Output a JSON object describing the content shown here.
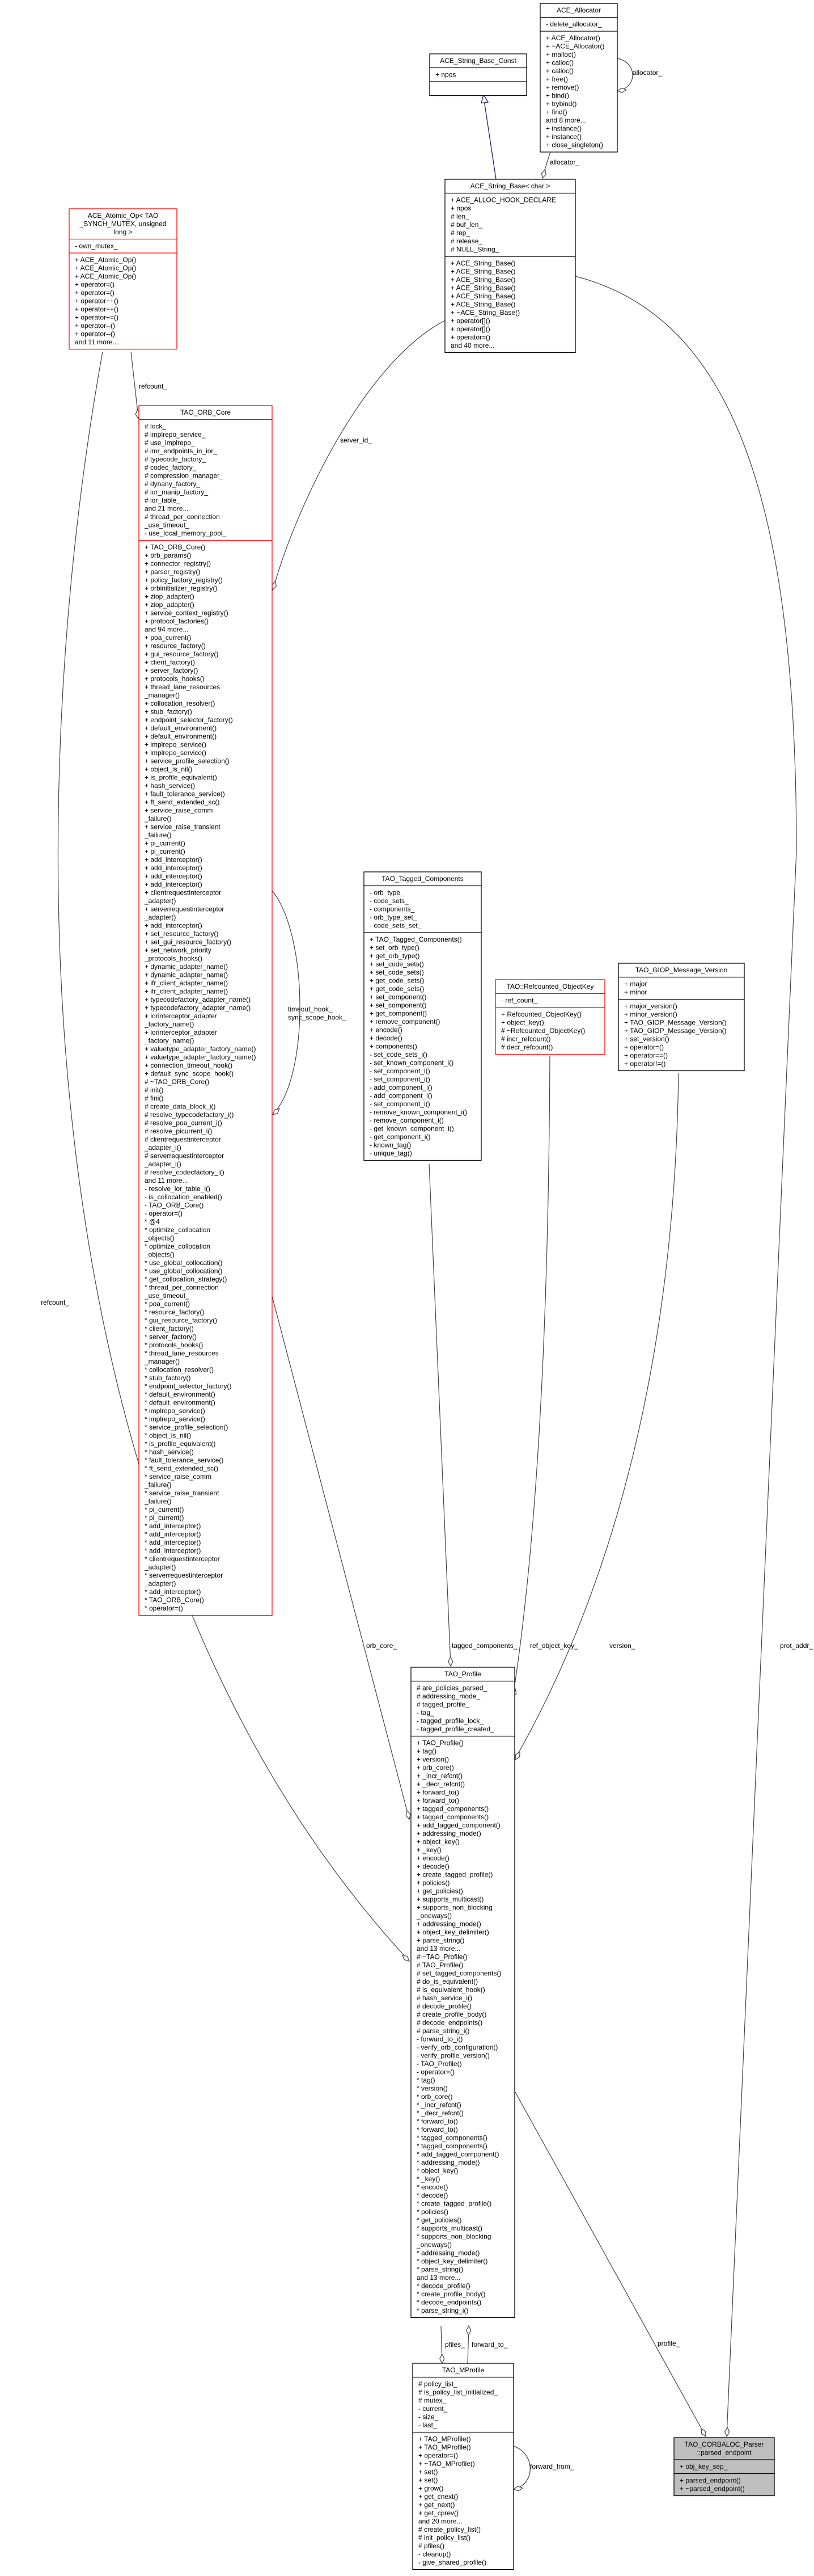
{
  "colors": {
    "normal_border": "#000000",
    "incomplete_border": "#ff0000",
    "focus_fill": "#bfbfbf",
    "box_fill": "#ffffff",
    "edge": "#404040",
    "inheritance_edge": "#191970"
  },
  "classes": [
    {
      "id": "ace-allocator",
      "title": [
        "ACE_Allocator"
      ],
      "border": "normal",
      "attributes": [
        "- delete_allocator_"
      ],
      "methods": [
        "+ ACE_Allocator()",
        "+ ~ACE_Allocator()",
        "+ malloc()",
        "+ calloc()",
        "+ calloc()",
        "+ free()",
        "+ remove()",
        "+ bind()",
        "+ trybind()",
        "+ find()",
        "and 8 more...",
        "+ instance()",
        "+ instance()",
        "+ close_singleton()"
      ]
    },
    {
      "id": "ace-string-base-const",
      "title": [
        "ACE_String_Base_Const"
      ],
      "border": "normal",
      "attributes": [
        "+ npos"
      ],
      "methods": []
    },
    {
      "id": "ace-string-base-char",
      "title": [
        "ACE_String_Base< char >"
      ],
      "border": "normal",
      "attributes": [
        "+ ACE_ALLOC_HOOK_DECLARE",
        "+ npos",
        "# len_",
        "# buf_len_",
        "# rep_",
        "# release_",
        "# NULL_String_"
      ],
      "methods": [
        "+ ACE_String_Base()",
        "+ ACE_String_Base()",
        "+ ACE_String_Base()",
        "+ ACE_String_Base()",
        "+ ACE_String_Base()",
        "+ ACE_String_Base()",
        "+ ~ACE_String_Base()",
        "+ operator[]()",
        "+ operator[]()",
        "+ operator=()",
        "and 40 more..."
      ]
    },
    {
      "id": "ace-atomic-op",
      "title": [
        "ACE_Atomic_Op< TAO",
        "_SYNCH_MUTEX, unsigned",
        "long >"
      ],
      "border": "incomplete",
      "attributes": [
        "- own_mutex_"
      ],
      "methods": [
        "+ ACE_Atomic_Op()",
        "+ ACE_Atomic_Op()",
        "+ ACE_Atomic_Op()",
        "+ operator=()",
        "+ operator=()",
        "+ operator++()",
        "+ operator++()",
        "+ operator+=()",
        "+ operator--()",
        "+ operator--()",
        "and 11 more..."
      ]
    },
    {
      "id": "tao-orb-core",
      "title": [
        "TAO_ORB_Core"
      ],
      "border": "incomplete",
      "attributes": [
        "# lock_",
        "# implrepo_service_",
        "# use_implrepo_",
        "# imr_endpoints_in_ior_",
        "# typecode_factory_",
        "# codec_factory_",
        "# compression_manager_",
        "# dynany_factory_",
        "# ior_manip_factory_",
        "# ior_table_",
        "and 21 more...",
        "# thread_per_connection",
        "_use_timeout_",
        "- use_local_memory_pool_"
      ],
      "methods": [
        "+ TAO_ORB_Core()",
        "+ orb_params()",
        "+ connector_registry()",
        "+ parser_registry()",
        "+ policy_factory_registry()",
        "+ orbinitializer_registry()",
        "+ ziop_adapter()",
        "+ ziop_adapter()",
        "+ service_context_registry()",
        "+ protocol_factories()",
        "and 94 more...",
        "+ poa_current()",
        "+ resource_factory()",
        "+ gui_resource_factory()",
        "+ client_factory()",
        "+ server_factory()",
        "+ protocols_hooks()",
        "+ thread_lane_resources",
        "_manager()",
        "+ collocation_resolver()",
        "+ stub_factory()",
        "+ endpoint_selector_factory()",
        "+ default_environment()",
        "+ default_environment()",
        "+ implrepo_service()",
        "+ implrepo_service()",
        "+ service_profile_selection()",
        "+ object_is_nil()",
        "+ is_profile_equivalent()",
        "+ hash_service()",
        "+ fault_tolerance_service()",
        "+ ft_send_extended_sc()",
        "+ service_raise_comm",
        "_failure()",
        "+ service_raise_transient",
        "_failure()",
        "+ pi_current()",
        "+ pi_current()",
        "+ add_interceptor()",
        "+ add_interceptor()",
        "+ add_interceptor()",
        "+ add_interceptor()",
        "+ clientrequestinterceptor",
        "_adapter()",
        "+ serverrequestinterceptor",
        "_adapter()",
        "+ add_interceptor()",
        "+ set_resource_factory()",
        "+ set_gui_resource_factory()",
        "+ set_network_priority",
        "_protocols_hooks()",
        "+ dynamic_adapter_name()",
        "+ dynamic_adapter_name()",
        "+ ifr_client_adapter_name()",
        "+ ifr_client_adapter_name()",
        "+ typecodefactory_adapter_name()",
        "+ typecodefactory_adapter_name()",
        "+ iorinterceptor_adapter",
        "_factory_name()",
        "+ iorinterceptor_adapter",
        "_factory_name()",
        "+ valuetype_adapter_factory_name()",
        "+ valuetype_adapter_factory_name()",
        "+ connection_timeout_hook()",
        "+ default_sync_scope_hook()",
        "# ~TAO_ORB_Core()",
        "# init()",
        "# fini()",
        "# create_data_block_i()",
        "# resolve_typecodefactory_i()",
        "# resolve_poa_current_i()",
        "# resolve_picurrent_i()",
        "# clientrequestinterceptor",
        "_adapter_i()",
        "# serverrequestinterceptor",
        "_adapter_i()",
        "# resolve_codecfactory_i()",
        "and 11 more...",
        "- resolve_ior_table_i()",
        "- is_collocation_enabled()",
        "- TAO_ORB_Core()",
        "- operator=()",
        "* @4",
        "* optimize_collocation",
        "_objects()",
        "* optimize_collocation",
        "_objects()",
        "* use_global_collocation()",
        "* use_global_collocation()",
        "* get_collocation_strategy()",
        "* thread_per_connection",
        "_use_timeout_",
        "* poa_current()",
        "* resource_factory()",
        "* gui_resource_factory()",
        "* client_factory()",
        "* server_factory()",
        "* protocols_hooks()",
        "* thread_lane_resources",
        "_manager()",
        "* collocation_resolver()",
        "* stub_factory()",
        "* endpoint_selector_factory()",
        "* default_environment()",
        "* default_environment()",
        "* implrepo_service()",
        "* implrepo_service()",
        "* service_profile_selection()",
        "* object_is_nil()",
        "* is_profile_equivalent()",
        "* hash_service()",
        "* fault_tolerance_service()",
        "* ft_send_extended_sc()",
        "* service_raise_comm",
        "_failure()",
        "* service_raise_transient",
        "_failure()",
        "* pi_current()",
        "* pi_current()",
        "* add_interceptor()",
        "* add_interceptor()",
        "* add_interceptor()",
        "* add_interceptor()",
        "* clientrequestinterceptor",
        "_adapter()",
        "* serverrequestinterceptor",
        "_adapter()",
        "* add_interceptor()",
        "* TAO_ORB_Core()",
        "* operator=()"
      ]
    },
    {
      "id": "tao-tagged-components",
      "title": [
        "TAO_Tagged_Components"
      ],
      "border": "normal",
      "attributes": [
        "- orb_type_",
        "- code_sets_",
        "- components_",
        "- orb_type_set_",
        "- code_sets_set_"
      ],
      "methods": [
        "+ TAO_Tagged_Components()",
        "+ set_orb_type()",
        "+ get_orb_type()",
        "+ set_code_sets()",
        "+ set_code_sets()",
        "+ get_code_sets()",
        "+ get_code_sets()",
        "+ set_component()",
        "+ set_component()",
        "+ get_component()",
        "+ remove_component()",
        "+ encode()",
        "+ decode()",
        "+ components()",
        "- set_code_sets_i()",
        "- set_known_component_i()",
        "- set_component_i()",
        "- set_component_i()",
        "- add_component_i()",
        "- add_component_i()",
        "- set_component_i()",
        "- remove_known_component_i()",
        "- remove_component_i()",
        "- get_known_component_i()",
        "- get_component_i()",
        "- known_tag()",
        "- unique_tag()"
      ]
    },
    {
      "id": "tao-refcounted-objectkey",
      "title": [
        "TAO::Refcounted_ObjectKey"
      ],
      "border": "incomplete",
      "attributes": [
        "- ref_count_"
      ],
      "methods": [
        "+ Refcounted_ObjectKey()",
        "+ object_key()",
        "# ~Refcounted_ObjectKey()",
        "# incr_refcount()",
        "# decr_refcount()"
      ]
    },
    {
      "id": "tao-giop-message-version",
      "title": [
        "TAO_GIOP_Message_Version"
      ],
      "border": "normal",
      "attributes": [
        "+ major",
        "+ minor"
      ],
      "methods": [
        "+ major_version()",
        "+ minor_version()",
        "+ TAO_GIOP_Message_Version()",
        "+ TAO_GIOP_Message_Version()",
        "+ set_version()",
        "+ operator=()",
        "+ operator==()",
        "+ operator!=()"
      ]
    },
    {
      "id": "tao-profile",
      "title": [
        "TAO_Profile"
      ],
      "border": "normal",
      "attributes": [
        "# are_policies_parsed_",
        "# addressing_mode_",
        "# tagged_profile_",
        "- tag_",
        "- tagged_profile_lock_",
        "- tagged_profile_created_"
      ],
      "methods": [
        "+ TAO_Profile()",
        "+ tag()",
        "+ version()",
        "+ orb_core()",
        "+ _incr_refcnt()",
        "+ _decr_refcnt()",
        "+ forward_to()",
        "+ forward_to()",
        "+ tagged_components()",
        "+ tagged_components()",
        "+ add_tagged_component()",
        "+ addressing_mode()",
        "+ object_key()",
        "+ _key()",
        "+ encode()",
        "+ decode()",
        "+ create_tagged_profile()",
        "+ policies()",
        "+ get_policies()",
        "+ supports_multicast()",
        "+ supports_non_blocking",
        "_oneways()",
        "+ addressing_mode()",
        "+ object_key_delimiter()",
        "+ parse_string()",
        "and 13 more...",
        "# ~TAO_Profile()",
        "# TAO_Profile()",
        "# set_tagged_components()",
        "# do_is_equivalent()",
        "# is_equivalent_hook()",
        "# hash_service_i()",
        "# decode_profile()",
        "# create_profile_body()",
        "# decode_endpoints()",
        "# parse_string_i()",
        "- forward_to_i()",
        "- verify_orb_configuration()",
        "- verify_profile_version()",
        "- TAO_Profile()",
        "- operator=()",
        "* tag()",
        "* version()",
        "* orb_core()",
        "* _incr_refcnt()",
        "* _decr_refcnt()",
        "* forward_to()",
        "* forward_to()",
        "* tagged_components()",
        "* tagged_components()",
        "* add_tagged_component()",
        "* addressing_mode()",
        "* object_key()",
        "* _key()",
        "* encode()",
        "* decode()",
        "* create_tagged_profile()",
        "* policies()",
        "* get_policies()",
        "* supports_multicast()",
        "* supports_non_blocking",
        "_oneways()",
        "* addressing_mode()",
        "* object_key_delimiter()",
        "* parse_string()",
        "and 13 more...",
        "* decode_profile()",
        "* create_profile_body()",
        "* decode_endpoints()",
        "* parse_string_i()"
      ]
    },
    {
      "id": "tao-mprofile",
      "title": [
        "TAO_MProfile"
      ],
      "border": "normal",
      "attributes": [
        "# policy_list_",
        "# is_policy_list_initialized_",
        "# mutex_",
        "- current_",
        "- size_",
        "- last_"
      ],
      "methods": [
        "+ TAO_MProfile()",
        "+ TAO_MProfile()",
        "+ operator=()",
        "+ ~TAO_MProfile()",
        "+ set()",
        "+ set()",
        "+ grow()",
        "+ get_cnext()",
        "+ get_next()",
        "+ get_cprev()",
        "and 20 more...",
        "# create_policy_list()",
        "# init_policy_list()",
        "# pfiles()",
        "- cleanup()",
        "- give_shared_profile()"
      ]
    },
    {
      "id": "tao-corbaloc-parser-parsed-endpoint",
      "title": [
        "TAO_CORBALOC_Parser",
        "::parsed_endpoint"
      ],
      "border": "focus",
      "attributes": [
        "+ obj_key_sep_"
      ],
      "methods": [
        "+ parsed_endpoint()",
        "+ ~parsed_endpoint()"
      ]
    }
  ],
  "edges": [
    {
      "label": [
        "allocator_"
      ],
      "kind": "usage"
    },
    {
      "label": [
        "allocator_"
      ],
      "kind": "usage"
    },
    {
      "label": [],
      "kind": "inheritance"
    },
    {
      "label": [
        "server_id_"
      ],
      "kind": "usage"
    },
    {
      "label": [
        "refcount_"
      ],
      "kind": "usage"
    },
    {
      "label": [
        "refcount_"
      ],
      "kind": "usage"
    },
    {
      "label": [
        "timeout_hook_",
        "sync_scope_hook_"
      ],
      "kind": "usage"
    },
    {
      "label": [
        "orb_core_"
      ],
      "kind": "usage"
    },
    {
      "label": [
        "tagged_components_"
      ],
      "kind": "usage"
    },
    {
      "label": [
        "ref_object_key_"
      ],
      "kind": "usage"
    },
    {
      "label": [
        "version_"
      ],
      "kind": "usage"
    },
    {
      "label": [
        "prot_addr_"
      ],
      "kind": "usage"
    },
    {
      "label": [
        "profile_"
      ],
      "kind": "usage"
    },
    {
      "label": [
        "pfiles_"
      ],
      "kind": "usage"
    },
    {
      "label": [
        "forward_to_"
      ],
      "kind": "usage"
    },
    {
      "label": [
        "forward_from_"
      ],
      "kind": "usage"
    }
  ]
}
